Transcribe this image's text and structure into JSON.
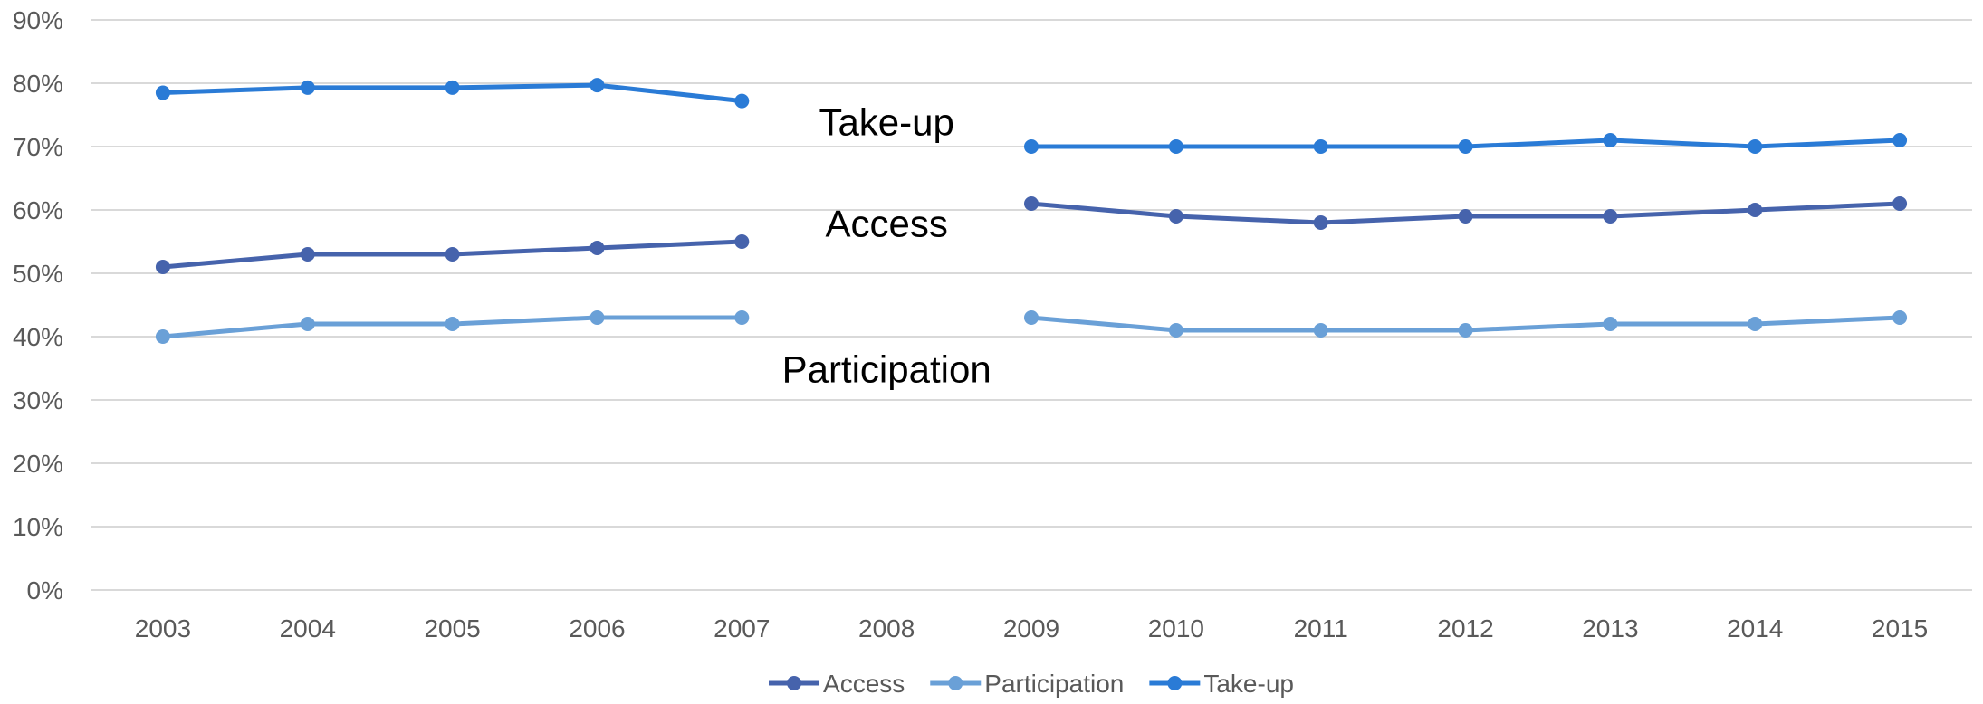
{
  "chart_data": {
    "type": "line",
    "x": [
      "2003",
      "2004",
      "2005",
      "2006",
      "2007",
      "2008",
      "2009",
      "2010",
      "2011",
      "2012",
      "2013",
      "2014",
      "2015"
    ],
    "ylim": [
      0,
      90
    ],
    "yticks": [
      "0%",
      "10%",
      "20%",
      "30%",
      "40%",
      "50%",
      "60%",
      "70%",
      "80%",
      "90%"
    ],
    "grid": true,
    "legend_position": "bottom",
    "series": [
      {
        "name": "Access",
        "color": "#4663ac",
        "values": [
          51,
          53,
          53,
          54,
          55,
          null,
          61,
          59,
          58,
          59,
          59,
          60,
          61
        ]
      },
      {
        "name": "Participation",
        "color": "#6aa0d7",
        "values": [
          40,
          42,
          42,
          43,
          43,
          null,
          43,
          41,
          41,
          41,
          42,
          42,
          43
        ]
      },
      {
        "name": "Take-up",
        "color": "#2a7bd6",
        "values": [
          78.5,
          79.3,
          79.3,
          79.7,
          77.2,
          null,
          70,
          70,
          70,
          70,
          71,
          70,
          71
        ]
      }
    ],
    "annotations": [
      {
        "text": "Take-up",
        "x": "2008",
        "y": 71.8
      },
      {
        "text": "Access",
        "x": "2008",
        "y": 55.8
      },
      {
        "text": "Participation",
        "x": "2008",
        "y": 32.8
      }
    ]
  }
}
